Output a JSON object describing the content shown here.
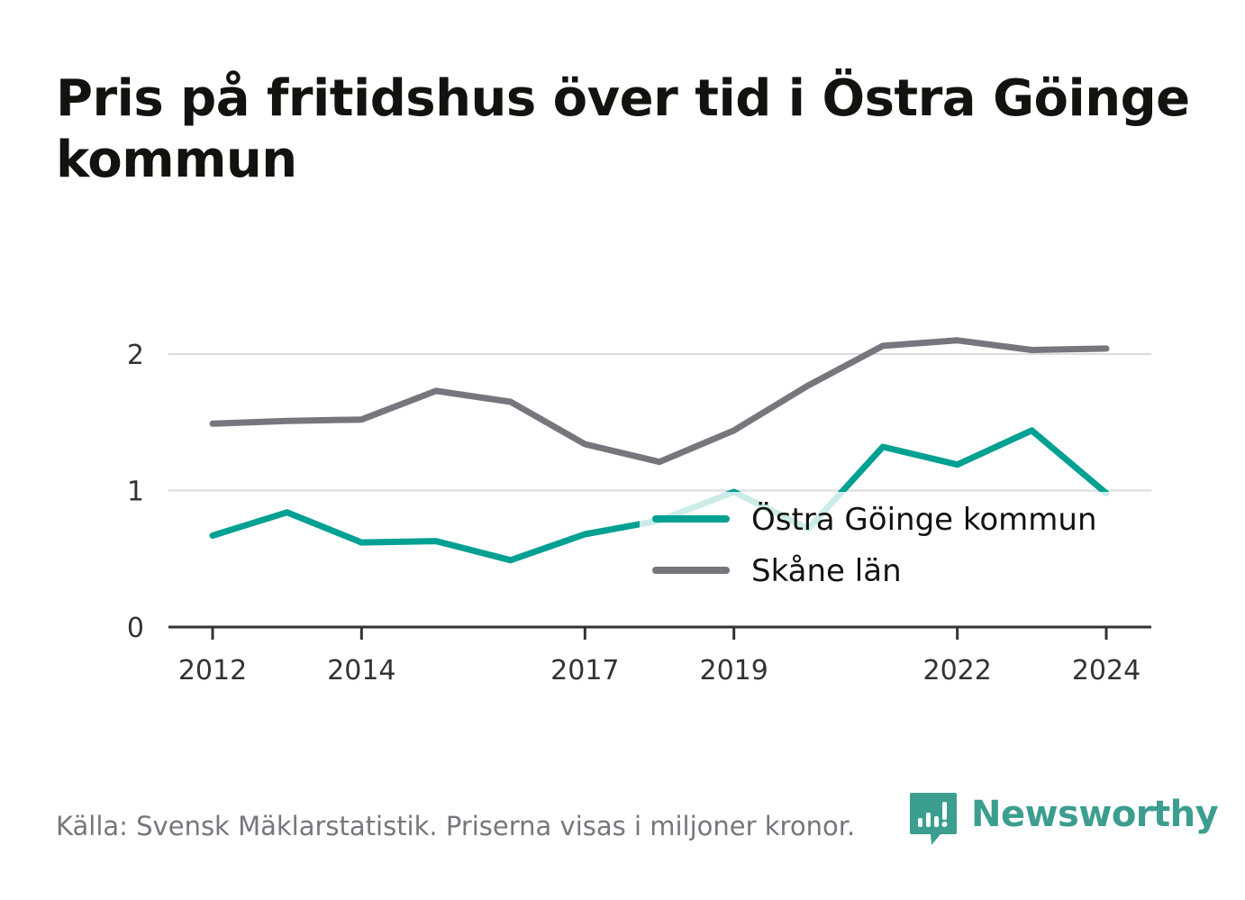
{
  "chart_data": {
    "type": "line",
    "title": "Pris på fritidshus över tid i Östra Göinge kommun",
    "x": [
      2012,
      2013,
      2014,
      2015,
      2016,
      2017,
      2018,
      2019,
      2020,
      2021,
      2022,
      2023,
      2024
    ],
    "x_ticks": [
      "2012",
      "2014",
      "2017",
      "2019",
      "2022",
      "2024"
    ],
    "y_ticks": [
      "0",
      "1",
      "2"
    ],
    "ylim": [
      0,
      2.25
    ],
    "grid": true,
    "legend_position": "bottom-right",
    "series": [
      {
        "name": "Östra Göinge kommun",
        "color": "#00a093",
        "values": [
          0.67,
          0.84,
          0.62,
          0.63,
          0.49,
          0.68,
          0.78,
          0.99,
          0.72,
          1.32,
          1.19,
          1.44,
          0.98
        ]
      },
      {
        "name": "Skåne län",
        "color": "#76767d",
        "values": [
          1.49,
          1.51,
          1.52,
          1.73,
          1.65,
          1.34,
          1.21,
          1.44,
          1.77,
          2.06,
          2.1,
          2.03,
          2.04
        ]
      }
    ]
  },
  "source_text": "Källa: Svensk Mäklarstatistik. Priserna visas i miljoner kronor.",
  "brand": {
    "name": "Newsworthy",
    "color": "#3b9e8f"
  }
}
